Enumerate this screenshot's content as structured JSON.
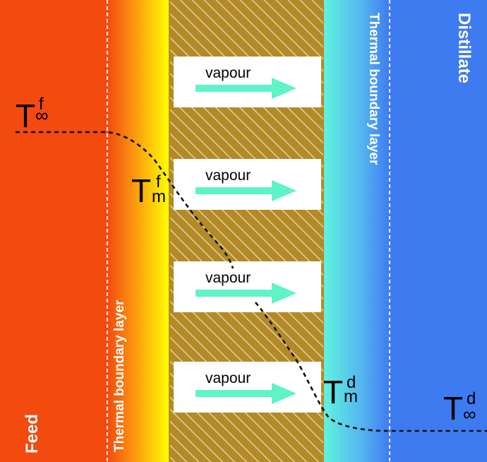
{
  "regions": {
    "feed_label": "Feed",
    "distillate_label": "Distillate",
    "feed_boundary_label": "Thermal boundary layer",
    "distillate_boundary_label": "Thermal boundary layer"
  },
  "pores": [
    {
      "label": "vapour"
    },
    {
      "label": "vapour"
    },
    {
      "label": "vapour"
    },
    {
      "label": "vapour"
    }
  ],
  "temperatures": {
    "feed_bulk": {
      "symbol": "T",
      "sup": "f",
      "sub": "∞"
    },
    "feed_membrane": {
      "symbol": "T",
      "sup": "f",
      "sub": "m"
    },
    "distillate_membrane": {
      "symbol": "T",
      "sup": "d",
      "sub": "m"
    },
    "distillate_bulk": {
      "symbol": "T",
      "sup": "d",
      "sub": "∞"
    }
  },
  "colors": {
    "feed": "#f24a0f",
    "feed_layer_start": "#f24a0f",
    "feed_layer_end": "#ffff00",
    "membrane": "#b48a26",
    "hatch": "#e8dcc0",
    "distillate_layer_start": "#5ff3de",
    "distillate_layer_end": "#3f7bf0",
    "distillate": "#3f7bf0",
    "arrow": "#5ff3c8",
    "profile_line": "#111111"
  },
  "icons": {
    "pore_arrow": "arrow-right-icon"
  }
}
